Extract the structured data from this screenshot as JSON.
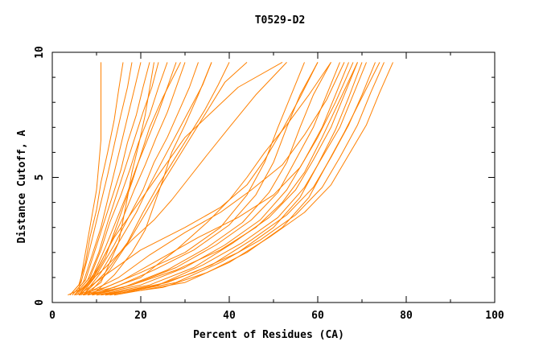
{
  "chart_data": {
    "type": "line",
    "title": "T0529-D2",
    "xlabel": "Percent of Residues (CA)",
    "ylabel": "Distance Cutoff, A",
    "xlim": [
      0,
      100
    ],
    "ylim": [
      0,
      10
    ],
    "x_ticks": [
      "0",
      "20",
      "40",
      "60",
      "80",
      "100"
    ],
    "y_ticks": [
      "0",
      "5",
      "10"
    ],
    "grid": false,
    "line_color": "#ff8000",
    "series": [
      {
        "x": [
          3.5,
          6,
          7,
          8,
          9,
          10,
          10.5,
          11,
          11,
          11
        ],
        "y": [
          0.3,
          0.5,
          1.5,
          2.5,
          3.5,
          4.5,
          5.5,
          6.5,
          8,
          9.6
        ]
      },
      {
        "x": [
          4,
          6,
          7.5,
          8.5,
          10,
          11,
          12.5,
          14,
          15,
          16
        ],
        "y": [
          0.3,
          0.7,
          1.6,
          2.6,
          3.7,
          4.8,
          6,
          7.3,
          8.5,
          9.6
        ]
      },
      {
        "x": [
          4,
          6.5,
          8,
          9.5,
          11,
          12.5,
          14,
          15.5,
          17,
          18
        ],
        "y": [
          0.3,
          0.8,
          1.8,
          2.9,
          4,
          5.1,
          6.3,
          7.5,
          8.6,
          9.6
        ]
      },
      {
        "x": [
          4.5,
          7,
          9,
          11,
          12.5,
          14,
          15.5,
          17,
          18.5,
          20
        ],
        "y": [
          0.3,
          0.8,
          1.9,
          3,
          4.1,
          5.2,
          6.3,
          7.4,
          8.5,
          9.6
        ]
      },
      {
        "x": [
          4.5,
          7.5,
          9.5,
          11.5,
          13.5,
          15.5,
          17,
          19,
          20.5,
          22
        ],
        "y": [
          0.3,
          0.9,
          2,
          3.1,
          4.2,
          5.3,
          6.4,
          7.5,
          8.6,
          9.6
        ]
      },
      {
        "x": [
          5,
          8,
          10.5,
          12.5,
          14.5,
          16.5,
          18.5,
          20.5,
          22.5,
          24
        ],
        "y": [
          0.3,
          0.9,
          2,
          3.2,
          4.3,
          5.4,
          6.5,
          7.6,
          8.6,
          9.6
        ]
      },
      {
        "x": [
          5,
          8.5,
          11,
          13,
          15.5,
          17.5,
          19.5,
          22,
          24,
          26
        ],
        "y": [
          0.3,
          1,
          2.1,
          3.2,
          4.3,
          5.3,
          6.4,
          7.5,
          8.6,
          9.6
        ]
      },
      {
        "x": [
          5.5,
          9,
          12,
          14.5,
          17,
          19,
          21.5,
          24,
          26,
          28
        ],
        "y": [
          0.3,
          1,
          2.2,
          3.3,
          4.4,
          5.4,
          6.5,
          7.6,
          8.6,
          9.6
        ]
      },
      {
        "x": [
          6,
          9.5,
          13,
          16,
          18.5,
          21,
          23.5,
          26,
          28,
          30
        ],
        "y": [
          0.3,
          1.1,
          2.3,
          3.4,
          4.5,
          5.5,
          6.6,
          7.6,
          8.6,
          9.6
        ]
      },
      {
        "x": [
          6.5,
          10,
          14,
          17.5,
          20.5,
          23,
          26,
          28.5,
          31,
          33
        ],
        "y": [
          0.3,
          1.1,
          2.3,
          3.5,
          4.5,
          5.6,
          6.6,
          7.6,
          8.6,
          9.6
        ]
      },
      {
        "x": [
          7,
          11,
          15,
          19,
          22,
          25,
          28,
          31,
          34,
          36
        ],
        "y": [
          0.3,
          1.2,
          2.4,
          3.6,
          4.7,
          5.7,
          6.7,
          7.7,
          8.7,
          9.6
        ]
      },
      {
        "x": [
          7,
          12,
          17,
          20.5,
          24,
          27.5,
          31,
          34.5,
          37.5,
          40
        ],
        "y": [
          0.3,
          1.2,
          2.4,
          3.6,
          4.7,
          5.7,
          6.7,
          7.7,
          8.7,
          9.6
        ]
      },
      {
        "x": [
          8,
          13,
          17.5,
          21.5,
          25,
          28.5,
          32,
          35.5,
          39,
          44
        ],
        "y": [
          0.3,
          1.3,
          2.5,
          3.7,
          4.8,
          5.8,
          6.8,
          7.8,
          8.8,
          9.6
        ]
      },
      {
        "x": [
          7,
          11,
          13,
          15,
          16,
          17,
          18,
          19.5,
          21,
          23
        ],
        "y": [
          0.3,
          0.8,
          1.6,
          2.4,
          3.3,
          4.2,
          5.2,
          6.3,
          7.5,
          9.6
        ]
      },
      {
        "x": [
          6,
          9,
          12,
          14,
          16,
          18,
          20,
          22,
          25,
          29
        ],
        "y": [
          0.3,
          0.9,
          1.8,
          2.8,
          3.8,
          4.8,
          5.9,
          7,
          8.2,
          9.6
        ]
      },
      {
        "x": [
          9,
          14,
          18,
          21,
          23,
          25,
          27,
          30,
          33,
          36
        ],
        "y": [
          0.3,
          1.1,
          2,
          2.9,
          3.9,
          4.9,
          6,
          7.1,
          8.3,
          9.6
        ]
      },
      {
        "x": [
          6,
          10,
          14,
          18,
          22,
          26,
          30,
          36,
          42,
          52
        ],
        "y": [
          0.3,
          1.3,
          2.6,
          3.6,
          4.6,
          5.6,
          6.6,
          7.6,
          8.6,
          9.6
        ]
      },
      {
        "x": [
          5,
          12,
          18,
          23,
          27,
          31,
          35,
          40,
          46,
          53
        ],
        "y": [
          0.3,
          1.4,
          2.5,
          3.3,
          4.1,
          5,
          5.9,
          7,
          8.3,
          9.6
        ]
      },
      {
        "x": [
          5,
          12,
          20,
          30,
          38,
          44,
          48,
          51,
          54,
          57
        ],
        "y": [
          0.3,
          0.6,
          1.2,
          2,
          3,
          4.3,
          5.6,
          7,
          8.3,
          9.6
        ]
      },
      {
        "x": [
          6,
          14,
          23,
          32,
          40,
          46,
          50,
          53,
          56,
          60
        ],
        "y": [
          0.3,
          0.6,
          1.3,
          2.1,
          3.1,
          4.3,
          5.6,
          7,
          8.3,
          9.6
        ]
      },
      {
        "x": [
          7,
          16,
          26,
          35,
          43,
          49,
          53,
          56,
          59,
          63
        ],
        "y": [
          0.3,
          0.6,
          1.3,
          2.2,
          3.2,
          4.4,
          5.6,
          7,
          8.3,
          9.6
        ]
      },
      {
        "x": [
          8,
          18,
          28,
          37,
          45,
          51,
          55,
          59,
          62,
          65
        ],
        "y": [
          0.3,
          0.7,
          1.4,
          2.3,
          3.3,
          4.4,
          5.7,
          7,
          8.3,
          9.6
        ]
      },
      {
        "x": [
          9,
          20,
          30,
          39,
          47,
          53,
          57,
          61,
          64,
          67
        ],
        "y": [
          0.3,
          0.7,
          1.4,
          2.3,
          3.3,
          4.5,
          5.7,
          7,
          8.3,
          9.6
        ]
      },
      {
        "x": [
          10,
          22,
          32,
          41,
          49,
          55,
          59,
          63,
          66,
          69
        ],
        "y": [
          0.3,
          0.7,
          1.4,
          2.4,
          3.4,
          4.5,
          5.7,
          7,
          8.3,
          9.6
        ]
      },
      {
        "x": [
          11,
          24,
          34,
          43,
          51,
          57,
          61,
          65,
          68,
          71
        ],
        "y": [
          0.3,
          0.7,
          1.5,
          2.4,
          3.4,
          4.6,
          5.8,
          7,
          8.3,
          9.6
        ]
      },
      {
        "x": [
          12,
          26,
          36,
          45,
          53,
          59,
          63,
          67,
          70,
          73
        ],
        "y": [
          0.3,
          0.8,
          1.5,
          2.5,
          3.5,
          4.6,
          5.8,
          7.1,
          8.3,
          9.6
        ]
      },
      {
        "x": [
          13,
          28,
          38,
          47,
          55,
          61,
          65,
          69,
          72,
          75
        ],
        "y": [
          0.3,
          0.8,
          1.6,
          2.5,
          3.5,
          4.6,
          5.8,
          7.1,
          8.4,
          9.6
        ]
      },
      {
        "x": [
          14,
          30,
          40,
          49,
          57,
          63,
          67,
          71,
          74,
          77
        ],
        "y": [
          0.3,
          0.8,
          1.6,
          2.6,
          3.6,
          4.7,
          5.9,
          7.1,
          8.4,
          9.6
        ]
      },
      {
        "x": [
          8,
          16,
          24,
          33,
          42,
          50,
          56,
          60,
          64,
          68
        ],
        "y": [
          0.3,
          0.9,
          1.7,
          2.6,
          3.4,
          4.3,
          5.4,
          6.6,
          8,
          9.6
        ]
      },
      {
        "x": [
          7,
          15,
          22,
          30,
          38,
          45,
          52,
          57,
          62,
          66
        ],
        "y": [
          0.3,
          1,
          1.9,
          2.8,
          3.6,
          4.5,
          5.5,
          6.7,
          8.1,
          9.6
        ]
      },
      {
        "x": [
          6,
          12,
          20,
          30,
          38,
          44,
          48,
          52,
          56,
          60
        ],
        "y": [
          0.3,
          1.1,
          2.1,
          3,
          3.8,
          4.7,
          5.7,
          6.9,
          8.2,
          9.6
        ]
      },
      {
        "x": [
          9,
          20,
          28,
          35,
          40,
          44,
          48,
          53,
          58,
          63
        ],
        "y": [
          0.3,
          1,
          2.1,
          3.2,
          4.1,
          5,
          6,
          7.1,
          8.3,
          9.6
        ]
      },
      {
        "x": [
          10,
          22,
          32,
          42,
          50,
          56,
          60,
          64,
          67,
          70
        ],
        "y": [
          0.3,
          0.6,
          1.2,
          2,
          3,
          4.2,
          5.5,
          6.9,
          8.2,
          9.6
        ]
      },
      {
        "x": [
          12,
          25,
          35,
          44,
          52,
          58,
          62,
          66,
          70,
          74
        ],
        "y": [
          0.3,
          0.6,
          1.2,
          2,
          3,
          4.2,
          5.5,
          6.8,
          8.2,
          9.6
        ]
      },
      {
        "x": [
          9,
          18,
          28,
          38,
          46,
          52,
          57,
          61,
          65,
          69
        ],
        "y": [
          0.3,
          0.7,
          1.3,
          2.1,
          3,
          4,
          5.2,
          6.6,
          8.1,
          9.6
        ]
      }
    ]
  }
}
